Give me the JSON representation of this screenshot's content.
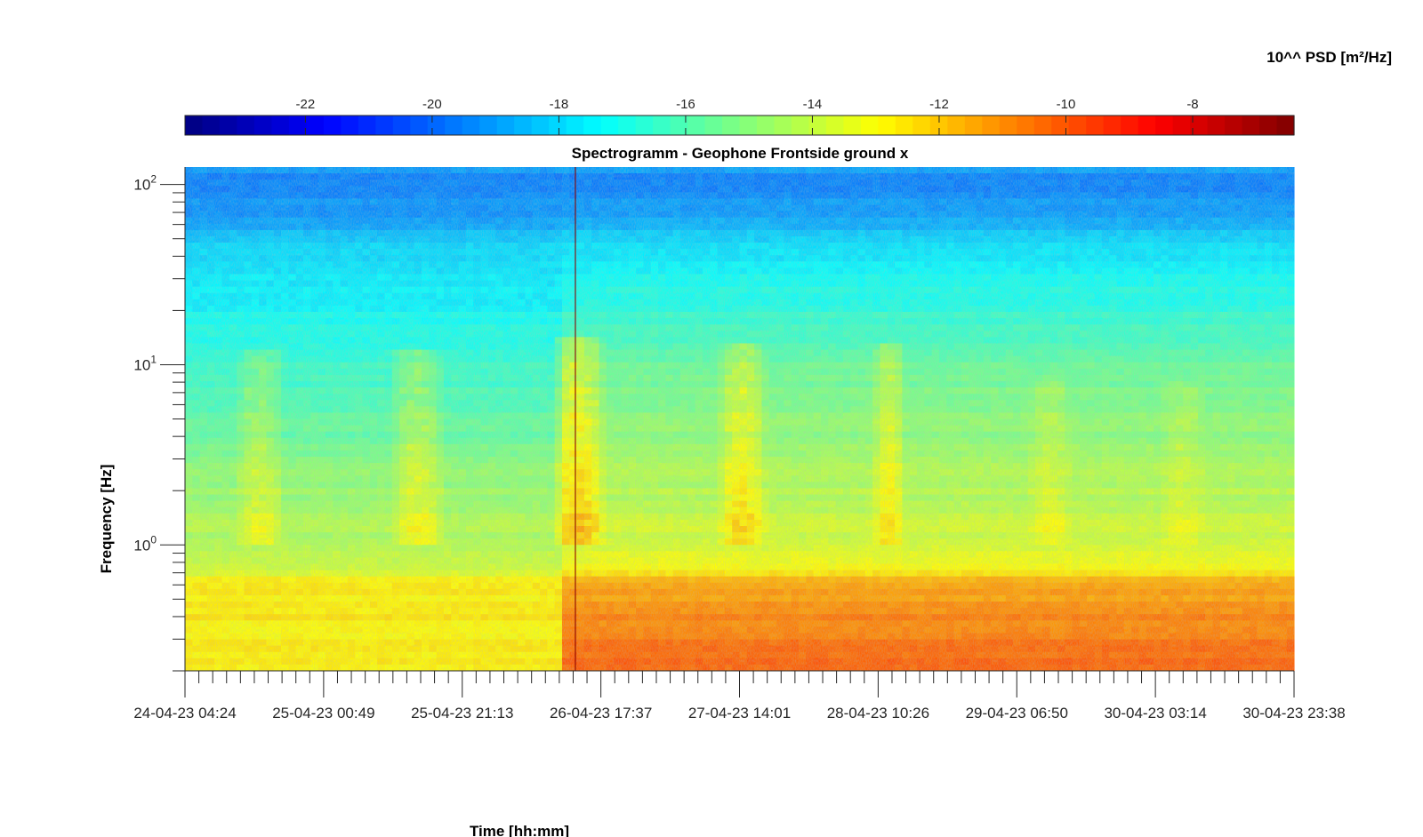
{
  "chart_data": {
    "type": "heatmap",
    "title": "Spectrogramm - Geophone Frontside ground x",
    "xlabel": "Time [hh:mm]",
    "ylabel": "Frequency [Hz]",
    "yscale": "log",
    "ylim": [
      0.2,
      125
    ],
    "x_tick_labels": [
      "24-04-23 04:24",
      "25-04-23 00:49",
      "25-04-23 21:13",
      "26-04-23 17:37",
      "27-04-23 14:01",
      "28-04-23 10:26",
      "29-04-23 06:50",
      "30-04-23 03:14",
      "30-04-23 23:38"
    ],
    "y_ticks": [
      {
        "base": "10",
        "exp": "0",
        "value": 1
      },
      {
        "base": "10",
        "exp": "1",
        "value": 10
      },
      {
        "base": "10",
        "exp": "2",
        "value": 100
      }
    ],
    "colorbar": {
      "label": "10^^ PSD [m²/Hz]",
      "location": "top",
      "colormap": "jet",
      "clim": [
        -23.9,
        -6.4
      ],
      "ticks": [
        -22,
        -20,
        -18,
        -16,
        -14,
        -12,
        -10,
        -8
      ],
      "tick_labels": [
        "-22",
        "-20",
        "-18",
        "-16",
        "-14",
        "-12",
        "-10",
        "-8"
      ]
    },
    "background_profile_log10_psd": {
      "frequency_hz": [
        0.2,
        0.3,
        0.45,
        0.6,
        0.75,
        1,
        1.5,
        2,
        3,
        5,
        8,
        12,
        15,
        20,
        30,
        40,
        50,
        65,
        80,
        100,
        125
      ],
      "before_event": [
        -12.6,
        -12.8,
        -12.7,
        -12.7,
        -13.6,
        -14.2,
        -14.5,
        -14.8,
        -15.2,
        -15.9,
        -16.4,
        -16.6,
        -16.9,
        -17.3,
        -17.6,
        -17.9,
        -18.4,
        -18.9,
        -19.3,
        -19.6,
        -19.2
      ],
      "after_event": [
        -10.0,
        -10.6,
        -11.0,
        -11.4,
        -12.8,
        -13.6,
        -14.0,
        -14.3,
        -14.6,
        -15.1,
        -15.5,
        -15.8,
        -16.3,
        -16.7,
        -17.1,
        -17.7,
        -18.2,
        -18.7,
        -19.2,
        -19.6,
        -19.1
      ]
    },
    "step_change_time_fraction": 0.34,
    "broadband_event_time_fraction": 0.352,
    "daytime_activity_bands": [
      {
        "time_fraction": [
          0.045,
          0.09
        ],
        "freq_hz": [
          1.0,
          12
        ],
        "log10_psd_rise": 1.3
      },
      {
        "time_fraction": [
          0.185,
          0.235
        ],
        "freq_hz": [
          1.0,
          12
        ],
        "log10_psd_rise": 1.6
      },
      {
        "time_fraction": [
          0.33,
          0.38
        ],
        "freq_hz": [
          1.0,
          14
        ],
        "log10_psd_rise": 2.2
      },
      {
        "time_fraction": [
          0.48,
          0.525
        ],
        "freq_hz": [
          1.0,
          13
        ],
        "log10_psd_rise": 1.8
      },
      {
        "time_fraction": [
          0.62,
          0.65
        ],
        "freq_hz": [
          1.0,
          13
        ],
        "log10_psd_rise": 1.6
      },
      {
        "time_fraction": [
          0.76,
          0.8
        ],
        "freq_hz": [
          1.0,
          8
        ],
        "log10_psd_rise": 0.8
      },
      {
        "time_fraction": [
          0.88,
          0.92
        ],
        "freq_hz": [
          1.0,
          8
        ],
        "log10_psd_rise": 0.7
      }
    ]
  }
}
